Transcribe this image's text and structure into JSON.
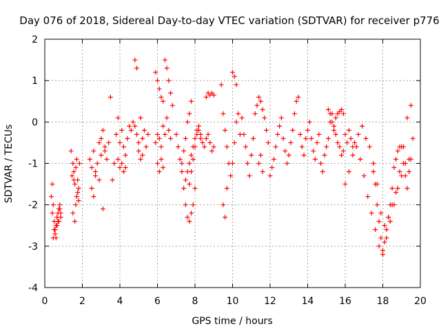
{
  "chart_data": {
    "type": "scatter",
    "title": "Day 076 of 2018, Sidereal Day-to-day VTEC variation (SDTVAR) for receiver p776",
    "xlabel": "GPS time / hours",
    "ylabel": "SDTVAR / TECUs",
    "xlim": [
      0,
      20
    ],
    "ylim": [
      -4,
      2
    ],
    "xticks": [
      0,
      2,
      4,
      6,
      8,
      10,
      12,
      14,
      16,
      18,
      20
    ],
    "yticks": [
      -4,
      -3,
      -2,
      -1,
      0,
      1,
      2
    ],
    "xtick_labels": [
      "0",
      "2",
      "4",
      "6",
      "8",
      "10",
      "12",
      "14",
      "16",
      "18",
      "20"
    ],
    "ytick_labels": [
      "-4",
      "-3",
      "-2",
      "-1",
      "0",
      "1",
      "2"
    ],
    "grid": true,
    "marker": "+",
    "color": "#ff0000",
    "series": [
      {
        "name": "SDTVAR",
        "x": [
          0.4,
          0.45,
          0.5,
          0.55,
          0.6,
          0.65,
          0.7,
          0.75,
          0.8,
          0.85,
          0.45,
          0.55,
          0.65,
          0.75,
          0.85,
          0.35,
          0.4,
          0.5,
          0.6,
          0.7,
          0.8,
          1.45,
          1.5,
          1.55,
          1.6,
          1.65,
          1.7,
          1.75,
          1.8,
          1.85,
          1.5,
          1.6,
          1.7,
          1.8,
          1.4,
          1.55,
          1.65,
          1.75,
          2.4,
          2.5,
          2.6,
          2.7,
          2.8,
          2.9,
          3.0,
          3.1,
          3.2,
          3.3,
          2.5,
          2.7,
          2.9,
          3.1,
          2.6,
          3.0,
          3.2,
          3.4,
          3.5,
          3.6,
          3.7,
          3.8,
          3.9,
          4.0,
          4.1,
          4.2,
          4.3,
          4.4,
          4.5,
          3.9,
          4.0,
          4.1,
          4.2,
          4.3,
          4.6,
          4.7,
          4.8,
          4.9,
          5.0,
          5.1,
          5.2,
          5.3,
          5.4,
          5.5,
          4.8,
          4.9,
          5.0,
          5.1,
          5.2,
          5.9,
          6.0,
          6.1,
          6.2,
          6.3,
          6.4,
          6.5,
          6.6,
          6.7,
          6.8,
          5.9,
          6.0,
          6.1,
          6.2,
          6.3,
          6.4,
          6.5,
          6.6,
          6.7,
          6.0,
          6.1,
          6.2,
          6.3,
          7.0,
          7.1,
          7.2,
          7.3,
          7.4,
          7.5,
          7.6,
          7.7,
          7.8,
          7.9,
          8.0,
          7.3,
          7.4,
          7.5,
          7.6,
          7.7,
          7.8,
          7.7,
          7.8,
          7.9,
          8.0,
          8.1,
          8.2,
          8.3,
          8.4,
          8.5,
          8.6,
          8.7,
          8.8,
          8.9,
          9.0,
          8.6,
          8.7,
          8.8,
          8.9,
          9.0,
          7.5,
          7.6,
          7.7,
          7.8,
          7.9,
          8.0,
          8.1,
          8.2,
          8.3,
          9.4,
          9.5,
          9.6,
          9.7,
          9.8,
          9.9,
          10.0,
          10.1,
          10.2,
          10.3,
          10.4,
          9.5,
          9.6,
          9.7,
          10.0,
          10.1,
          10.2,
          10.5,
          10.6,
          10.7,
          10.8,
          10.9,
          11.0,
          11.1,
          11.2,
          11.3,
          11.4,
          11.5,
          11.6,
          11.7,
          11.8,
          11.9,
          11.4,
          11.5,
          11.6,
          12.0,
          12.1,
          12.2,
          12.3,
          12.4,
          12.5,
          12.6,
          12.7,
          12.8,
          12.9,
          13.0,
          13.1,
          13.2,
          13.3,
          13.4,
          13.5,
          13.6,
          13.7,
          13.8,
          13.9,
          14.0,
          14.1,
          14.2,
          14.3,
          14.4,
          14.5,
          14.6,
          14.7,
          14.8,
          14.9,
          15.0,
          15.1,
          15.2,
          15.3,
          15.4,
          15.5,
          15.6,
          15.7,
          15.8,
          15.9,
          15.1,
          15.2,
          15.3,
          15.4,
          15.5,
          15.6,
          15.7,
          15.8,
          15.9,
          16.0,
          16.1,
          16.2,
          16.3,
          16.4,
          16.0,
          16.2,
          16.4,
          16.6,
          16.8,
          17.0,
          17.2,
          17.4,
          17.6,
          17.8,
          18.0,
          18.2,
          18.4,
          18.6,
          18.8,
          19.0,
          19.2,
          19.4,
          16.5,
          16.7,
          16.9,
          17.1,
          17.3,
          17.5,
          17.7,
          17.9,
          18.1,
          18.3,
          18.5,
          18.7,
          18.9,
          19.1,
          19.3,
          19.5,
          17.5,
          17.6,
          17.7,
          17.8,
          17.9,
          18.0,
          18.1,
          18.2,
          18.3,
          18.4,
          18.5,
          18.6,
          18.7,
          18.8,
          18.9,
          19.0,
          19.1,
          19.2,
          19.3,
          19.4,
          19.5,
          19.6
        ],
        "y": [
          -1.5,
          -2.0,
          -2.4,
          -2.6,
          -2.5,
          -2.3,
          -2.2,
          -2.1,
          -2.0,
          -2.2,
          -2.8,
          -2.7,
          -2.5,
          -2.4,
          -2.3,
          -1.8,
          -2.2,
          -2.6,
          -2.8,
          -2.4,
          -2.1,
          -1.3,
          -1.0,
          -1.2,
          -1.5,
          -1.1,
          -0.9,
          -1.4,
          -1.6,
          -1.0,
          -2.2,
          -2.4,
          -1.8,
          -1.9,
          -0.7,
          -1.4,
          -2.0,
          -1.7,
          -0.9,
          -1.1,
          -0.7,
          -1.3,
          -1.0,
          -0.5,
          -0.8,
          -0.2,
          -0.6,
          -0.9,
          -1.6,
          -1.2,
          -1.4,
          -2.1,
          -1.8,
          -0.4,
          -0.7,
          -0.5,
          0.6,
          -1.4,
          -1.0,
          -0.3,
          0.1,
          -0.5,
          -0.2,
          -0.6,
          -0.8,
          -0.4,
          -0.1,
          -0.9,
          -1.1,
          -1.0,
          -1.2,
          -1.1,
          -0.2,
          0.0,
          -0.1,
          -0.3,
          -0.5,
          0.1,
          -0.4,
          -0.2,
          -0.6,
          -0.3,
          1.5,
          1.3,
          -0.7,
          -0.9,
          -0.8,
          1.2,
          1.0,
          0.8,
          0.6,
          0.5,
          1.5,
          1.3,
          1.0,
          0.7,
          0.4,
          -0.5,
          -0.3,
          -0.4,
          -0.6,
          -0.1,
          -0.3,
          0.1,
          -0.2,
          -0.4,
          -1.0,
          -1.2,
          -0.9,
          -1.1,
          -0.3,
          -0.6,
          -0.9,
          -1.2,
          -1.6,
          -2.0,
          -2.3,
          -2.4,
          -2.2,
          -2.0,
          -1.6,
          -1.0,
          -0.7,
          -0.4,
          0.0,
          0.2,
          0.5,
          -1.5,
          -1.2,
          -0.9,
          -0.6,
          -0.3,
          -0.2,
          -0.4,
          -0.5,
          -0.6,
          -0.4,
          -0.3,
          -0.5,
          -0.7,
          -0.6,
          0.6,
          0.7,
          0.65,
          0.7,
          0.65,
          -1.4,
          -1.2,
          -1.0,
          -0.8,
          -0.6,
          -0.4,
          -0.2,
          -0.1,
          -0.3,
          0.9,
          0.2,
          -0.2,
          -0.6,
          -1.0,
          -1.3,
          -1.0,
          -0.5,
          0.0,
          0.2,
          -0.3,
          -2.0,
          -2.3,
          -1.6,
          1.2,
          1.1,
          0.9,
          0.1,
          -0.3,
          -0.6,
          -1.0,
          -1.3,
          -0.8,
          -0.4,
          0.2,
          0.4,
          0.6,
          0.5,
          0.3,
          0.1,
          -0.2,
          -0.5,
          -1.0,
          -0.8,
          -1.2,
          -1.3,
          -1.1,
          -0.9,
          -0.6,
          -0.3,
          -0.1,
          0.1,
          -0.4,
          -0.7,
          -1.0,
          -0.8,
          -0.5,
          -0.2,
          0.2,
          0.5,
          0.6,
          -0.3,
          -0.6,
          -0.8,
          -0.4,
          -0.2,
          0.0,
          -0.4,
          -0.7,
          -0.9,
          -0.5,
          -0.3,
          -1.0,
          -1.2,
          -0.8,
          -0.6,
          -0.4,
          0.0,
          0.2,
          -0.1,
          -0.3,
          -0.5,
          -0.6,
          -0.8,
          -0.7,
          0.3,
          0.2,
          0.0,
          -0.2,
          0.1,
          0.2,
          0.25,
          0.3,
          0.2,
          -0.3,
          -0.5,
          -0.2,
          -0.4,
          -0.6,
          -1.5,
          -1.2,
          -0.8,
          -0.6,
          -0.9,
          -1.3,
          -1.8,
          -2.2,
          -2.6,
          -3.0,
          -3.1,
          -2.8,
          -2.4,
          -2.0,
          -1.6,
          -1.3,
          -1.0,
          -0.9,
          -0.5,
          -0.3,
          -0.1,
          -0.4,
          -0.6,
          -1.0,
          -1.5,
          -2.2,
          -2.5,
          -2.3,
          -2.0,
          -1.7,
          -1.2,
          -0.6,
          0.1,
          0.4,
          -1.2,
          -1.5,
          -2.0,
          -2.4,
          -2.8,
          -3.2,
          -2.9,
          -2.6,
          -2.3,
          -2.0,
          -1.6,
          -1.1,
          -0.9,
          -0.7,
          -0.6,
          -0.6,
          -1.0,
          -1.3,
          -1.6,
          -1.2,
          -0.9,
          -0.4
        ]
      }
    ]
  }
}
